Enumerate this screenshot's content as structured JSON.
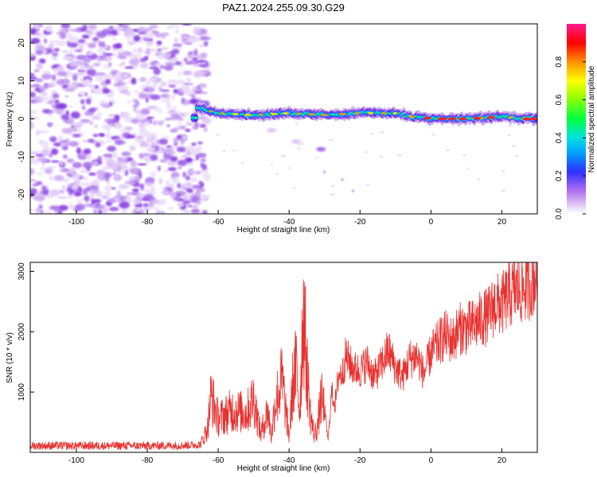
{
  "figure": {
    "title": "PAZ1.2024.255.09.30.G29"
  },
  "chart_data": [
    {
      "type": "heatmap",
      "xlabel": "Height of straight line (km)",
      "ylabel": "Frequency (Hz)",
      "xlim": [
        -113,
        30
      ],
      "ylim": [
        -25,
        25
      ],
      "x_ticks": [
        -100,
        -80,
        -60,
        -40,
        -20,
        0,
        20
      ],
      "y_ticks": [
        -20,
        -10,
        0,
        10,
        20
      ],
      "colorbar": {
        "label": "Normalized spectral amplitude",
        "range": [
          0,
          1
        ],
        "ticks": [
          "0.0",
          "0.2",
          "0.4",
          "0.6",
          "0.8"
        ],
        "colors": [
          "#ffffff",
          "#e0c8f5",
          "#a050f0",
          "#7a20e0",
          "#2020ff",
          "#00c8ff",
          "#00ff80",
          "#80ff00",
          "#ffff00",
          "#ff8000",
          "#ff0000",
          "#ff1493"
        ]
      },
      "features": {
        "noise_region_x": [
          -113,
          -65
        ],
        "signal_line": [
          {
            "x": -66,
            "f": 3.0
          },
          {
            "x": -60,
            "f": 1.5
          },
          {
            "x": -50,
            "f": 1.0
          },
          {
            "x": -40,
            "f": 1.5
          },
          {
            "x": -30,
            "f": 1.0
          },
          {
            "x": -20,
            "f": 1.5
          },
          {
            "x": -10,
            "f": 1.5
          },
          {
            "x": -5,
            "f": 0.5
          },
          {
            "x": 0,
            "f": 0.0
          },
          {
            "x": 10,
            "f": 0.0
          },
          {
            "x": 20,
            "f": 0.5
          },
          {
            "x": 30,
            "f": 0.0
          }
        ],
        "secondary_trace": [
          {
            "x": -45,
            "f": -3
          },
          {
            "x": -38,
            "f": -6
          },
          {
            "x": -31,
            "f": -8
          }
        ]
      },
      "grid": false
    },
    {
      "type": "line",
      "xlabel": "Height of straight line (km)",
      "ylabel": "SNR (10 * v/v)",
      "xlim": [
        -113,
        30
      ],
      "ylim": [
        0,
        3150
      ],
      "x_ticks": [
        -100,
        -80,
        -60,
        -40,
        -20,
        0,
        20
      ],
      "y_ticks": [
        1000,
        2000,
        3000
      ],
      "color": "#e8312f",
      "series": [
        {
          "x": [
            -113,
            -100,
            -90,
            -80,
            -70,
            -65,
            -63,
            -62,
            -60,
            -56,
            -52,
            -50,
            -48,
            -46,
            -45,
            -44,
            -42,
            -40,
            -39,
            -38,
            -37,
            -36,
            -35,
            -34,
            -33,
            -32,
            -31,
            -30,
            -29,
            -28,
            -27,
            -26,
            -25,
            -24,
            -22,
            -20,
            -18,
            -16,
            -14,
            -12,
            -10,
            -8,
            -6,
            -4,
            -2,
            0,
            2,
            4,
            6,
            8,
            10,
            12,
            14,
            16,
            18,
            20,
            22,
            24,
            26,
            28,
            30
          ],
          "y": [
            110,
            110,
            110,
            110,
            115,
            130,
            400,
            950,
            550,
            700,
            650,
            900,
            300,
            700,
            250,
            800,
            1200,
            250,
            1100,
            1400,
            700,
            2400,
            1400,
            650,
            300,
            400,
            900,
            700,
            200,
            1000,
            800,
            1300,
            1300,
            1600,
            1400,
            1350,
            1500,
            1250,
            1450,
            1700,
            1400,
            1250,
            1550,
            1600,
            1300,
            1650,
            1800,
            1950,
            1850,
            2050,
            2050,
            2100,
            2200,
            2250,
            2450,
            2450,
            2600,
            2700,
            2700,
            2800,
            2950
          ]
        }
      ],
      "grid": false
    }
  ]
}
